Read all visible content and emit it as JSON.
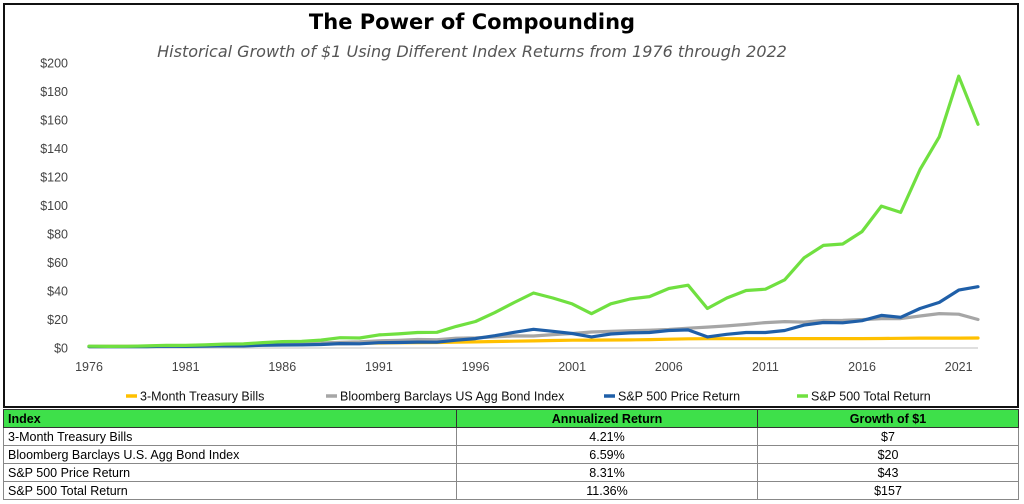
{
  "chart_data": {
    "type": "line",
    "title": "The Power of Compounding",
    "subtitle": "Historical Growth of $1 Using Different Index Returns from 1976 through 2022",
    "y_ticks": [
      "$0",
      "$20",
      "$40",
      "$60",
      "$80",
      "$100",
      "$120",
      "$140",
      "$160",
      "$180",
      "$200"
    ],
    "x_ticks": [
      "1976",
      "1981",
      "1986",
      "1991",
      "1996",
      "2001",
      "2006",
      "2011",
      "2016",
      "2021"
    ],
    "xlim": [
      1976,
      2022
    ],
    "ylim": [
      0,
      200
    ],
    "legend_position": "bottom",
    "x": [
      1976,
      1977,
      1978,
      1979,
      1980,
      1981,
      1982,
      1983,
      1984,
      1985,
      1986,
      1987,
      1988,
      1989,
      1990,
      1991,
      1992,
      1993,
      1994,
      1995,
      1996,
      1997,
      1998,
      1999,
      2000,
      2001,
      2002,
      2003,
      2004,
      2005,
      2006,
      2007,
      2008,
      2009,
      2010,
      2011,
      2012,
      2013,
      2014,
      2015,
      2016,
      2017,
      2018,
      2019,
      2020,
      2021,
      2022
    ],
    "series": [
      {
        "name": "3-Month Treasury Bills",
        "color": "#ffc000",
        "values": [
          1.05,
          1.11,
          1.19,
          1.31,
          1.46,
          1.67,
          1.85,
          2.01,
          2.21,
          2.38,
          2.53,
          2.67,
          2.84,
          3.07,
          3.31,
          3.5,
          3.62,
          3.73,
          3.88,
          4.1,
          4.31,
          4.53,
          4.75,
          4.98,
          5.28,
          5.48,
          5.57,
          5.63,
          5.7,
          5.87,
          6.16,
          6.45,
          6.54,
          6.55,
          6.56,
          6.56,
          6.57,
          6.57,
          6.57,
          6.58,
          6.6,
          6.66,
          6.79,
          6.94,
          6.98,
          6.98,
          7.0
        ]
      },
      {
        "name": "Bloomberg Barclays US Agg Bond Index",
        "color": "#a6a6a6",
        "values": [
          1.16,
          1.19,
          1.2,
          1.22,
          1.26,
          1.34,
          1.78,
          1.93,
          2.25,
          2.74,
          3.16,
          3.24,
          3.49,
          4.0,
          4.36,
          5.06,
          5.43,
          5.96,
          5.79,
          6.86,
          7.11,
          7.79,
          8.47,
          8.4,
          9.37,
          10.16,
          11.21,
          11.67,
          12.17,
          12.47,
          13.01,
          13.92,
          14.65,
          15.52,
          16.53,
          17.82,
          18.56,
          18.19,
          19.29,
          19.4,
          19.91,
          20.63,
          20.63,
          22.43,
          24.12,
          23.74,
          20.0
        ]
      },
      {
        "name": "S&P 500 Price Return",
        "color": "#1f5fa8",
        "values": [
          1.0,
          0.88,
          0.89,
          0.99,
          1.25,
          1.13,
          1.29,
          1.51,
          1.49,
          1.9,
          2.12,
          2.17,
          2.45,
          3.12,
          2.95,
          3.71,
          3.87,
          4.14,
          4.08,
          5.49,
          6.62,
          8.66,
          10.99,
          13.13,
          11.71,
          10.19,
          7.8,
          9.84,
          10.57,
          10.88,
          12.29,
          12.71,
          7.8,
          9.64,
          10.89,
          10.89,
          12.29,
          16.05,
          17.87,
          17.65,
          19.18,
          22.9,
          21.52,
          27.73,
          32.01,
          40.65,
          43.0
        ]
      },
      {
        "name": "S&P 500 Total Return",
        "color": "#70e040",
        "values": [
          1.24,
          1.15,
          1.22,
          1.45,
          1.92,
          1.82,
          2.21,
          2.71,
          2.88,
          3.79,
          4.5,
          4.73,
          5.52,
          7.26,
          7.03,
          9.17,
          9.87,
          10.86,
          11.0,
          15.13,
          18.6,
          24.81,
          31.9,
          38.61,
          35.1,
          30.93,
          24.1,
          31.01,
          34.38,
          36.07,
          41.76,
          44.06,
          27.75,
          35.1,
          40.38,
          41.23,
          47.83,
          63.32,
          71.98,
          72.98,
          81.71,
          99.55,
          95.19,
          125.16,
          148.19,
          190.73,
          157.0
        ]
      }
    ]
  },
  "table": {
    "headers": [
      "Index",
      "Annualized Return",
      "Growth of $1"
    ],
    "rows": [
      [
        "3-Month Treasury Bills",
        "4.21%",
        "$7"
      ],
      [
        "Bloomberg Barclays U.S. Agg Bond Index",
        "6.59%",
        "$20"
      ],
      [
        "S&P 500 Price Return",
        "8.31%",
        "$43"
      ],
      [
        "S&P 500 Total Return",
        "11.36%",
        "$157"
      ]
    ]
  },
  "colors": {
    "table_header_bg": "#3ee04a"
  }
}
